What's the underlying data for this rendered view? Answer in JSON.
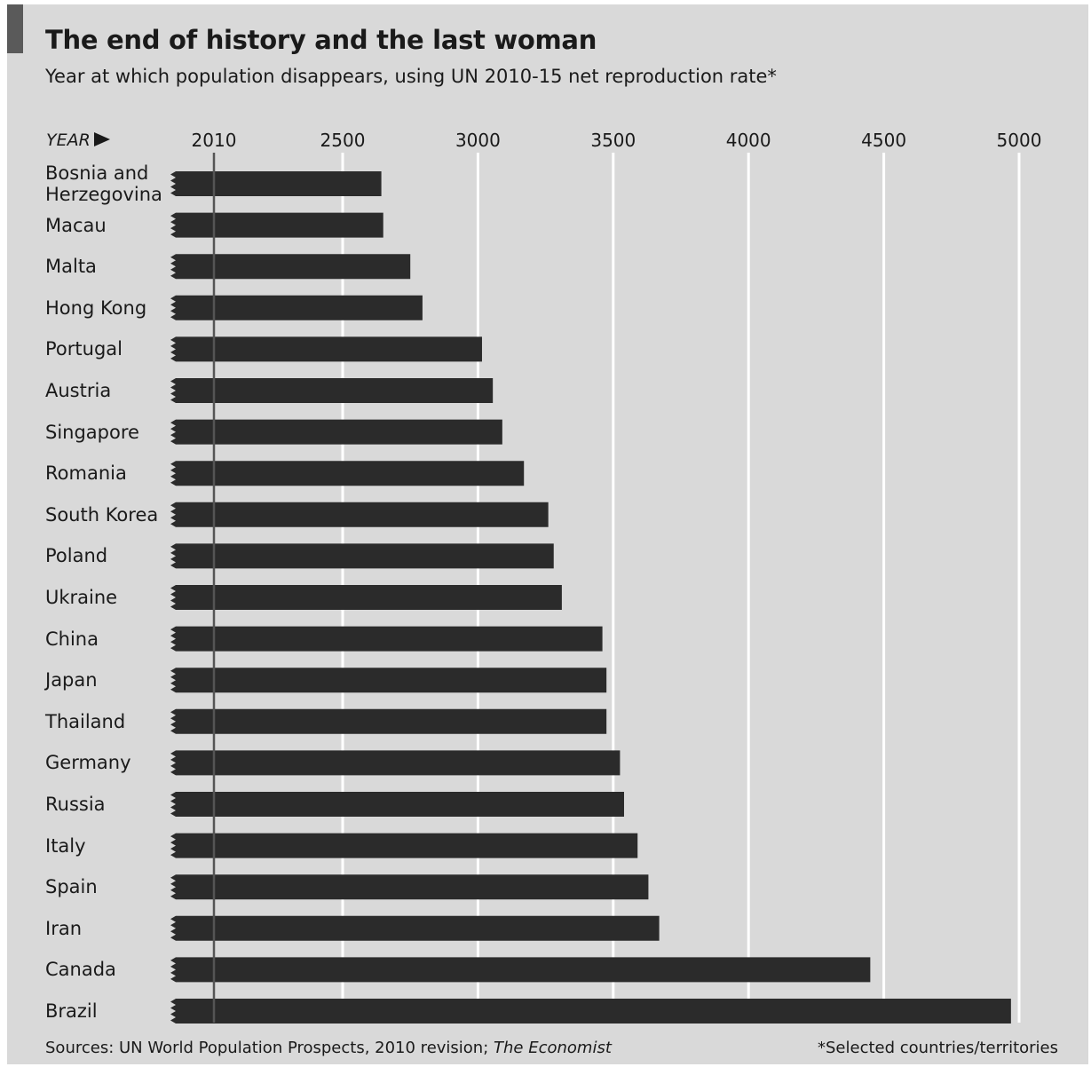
{
  "title": "The end of history and the last woman",
  "subtitle": "Year at which population disappears, using UN 2010-15 net reproduction rate*",
  "axis_label": "YEAR",
  "footer": {
    "sources_prefix": "Sources: UN World Population Prospects, 2010 revision; ",
    "sources_publication": "The Economist",
    "note": "*Selected countries/territories"
  },
  "colors": {
    "background": "#d9d9d9",
    "bar": "#2b2b2b",
    "gridline": "#ffffff",
    "baseline": "#555555"
  },
  "chart_data": {
    "type": "bar",
    "orientation": "horizontal",
    "title": "The end of history and the last woman",
    "subtitle": "Year at which population disappears, using UN 2010-15 net reproduction rate*",
    "xlabel": "YEAR",
    "ylabel": "",
    "xlim": [
      2010,
      5000
    ],
    "xticks": [
      2010,
      2500,
      3000,
      3500,
      4000,
      4500,
      5000
    ],
    "tick_labels": [
      "2010",
      "2500",
      "3000",
      "3500",
      "4000",
      "4500",
      "5000"
    ],
    "grid": true,
    "categories": [
      [
        "Bosnia and",
        "Herzegovina"
      ],
      [
        "Macau"
      ],
      [
        "Malta"
      ],
      [
        "Hong Kong"
      ],
      [
        "Portugal"
      ],
      [
        "Austria"
      ],
      [
        "Singapore"
      ],
      [
        "Romania"
      ],
      [
        "South Korea"
      ],
      [
        "Poland"
      ],
      [
        "Ukraine"
      ],
      [
        "China"
      ],
      [
        "Japan"
      ],
      [
        "Thailand"
      ],
      [
        "Germany"
      ],
      [
        "Russia"
      ],
      [
        "Italy"
      ],
      [
        "Spain"
      ],
      [
        "Iran"
      ],
      [
        "Canada"
      ],
      [
        "Brazil"
      ]
    ],
    "values": [
      2643,
      2650,
      2750,
      2795,
      3015,
      3055,
      3090,
      3170,
      3260,
      3280,
      3310,
      3460,
      3475,
      3475,
      3525,
      3540,
      3590,
      3630,
      3670,
      4450,
      4970
    ]
  }
}
